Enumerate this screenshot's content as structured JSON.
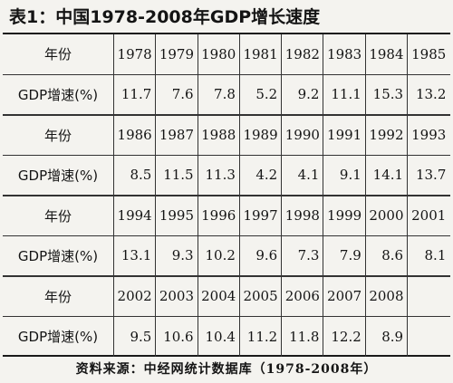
{
  "title": "表1：中国1978-2008年GDP增长速度",
  "row_labels": {
    "year": "年份",
    "gdp": "GDP增速(%)"
  },
  "blocks": [
    {
      "years": [
        "1978",
        "1979",
        "1980",
        "1981",
        "1982",
        "1983",
        "1984",
        "1985"
      ],
      "gdp": [
        "11.7",
        "7.6",
        "7.8",
        "5.2",
        "9.2",
        "11.1",
        "15.3",
        "13.2"
      ]
    },
    {
      "years": [
        "1986",
        "1987",
        "1988",
        "1989",
        "1990",
        "1991",
        "1992",
        "1993"
      ],
      "gdp": [
        "8.5",
        "11.5",
        "11.3",
        "4.2",
        "4.1",
        "9.1",
        "14.1",
        "13.7"
      ]
    },
    {
      "years": [
        "1994",
        "1995",
        "1996",
        "1997",
        "1998",
        "1999",
        "2000",
        "2001"
      ],
      "gdp": [
        "13.1",
        "9.3",
        "10.2",
        "9.6",
        "7.3",
        "7.9",
        "8.6",
        "8.1"
      ]
    },
    {
      "years": [
        "2002",
        "2003",
        "2004",
        "2005",
        "2006",
        "2007",
        "2008",
        ""
      ],
      "gdp": [
        "9.5",
        "10.6",
        "10.4",
        "11.2",
        "11.8",
        "12.2",
        "8.9",
        ""
      ]
    }
  ],
  "source": "资料来源：中经网统计数据库（1978-2008年）"
}
